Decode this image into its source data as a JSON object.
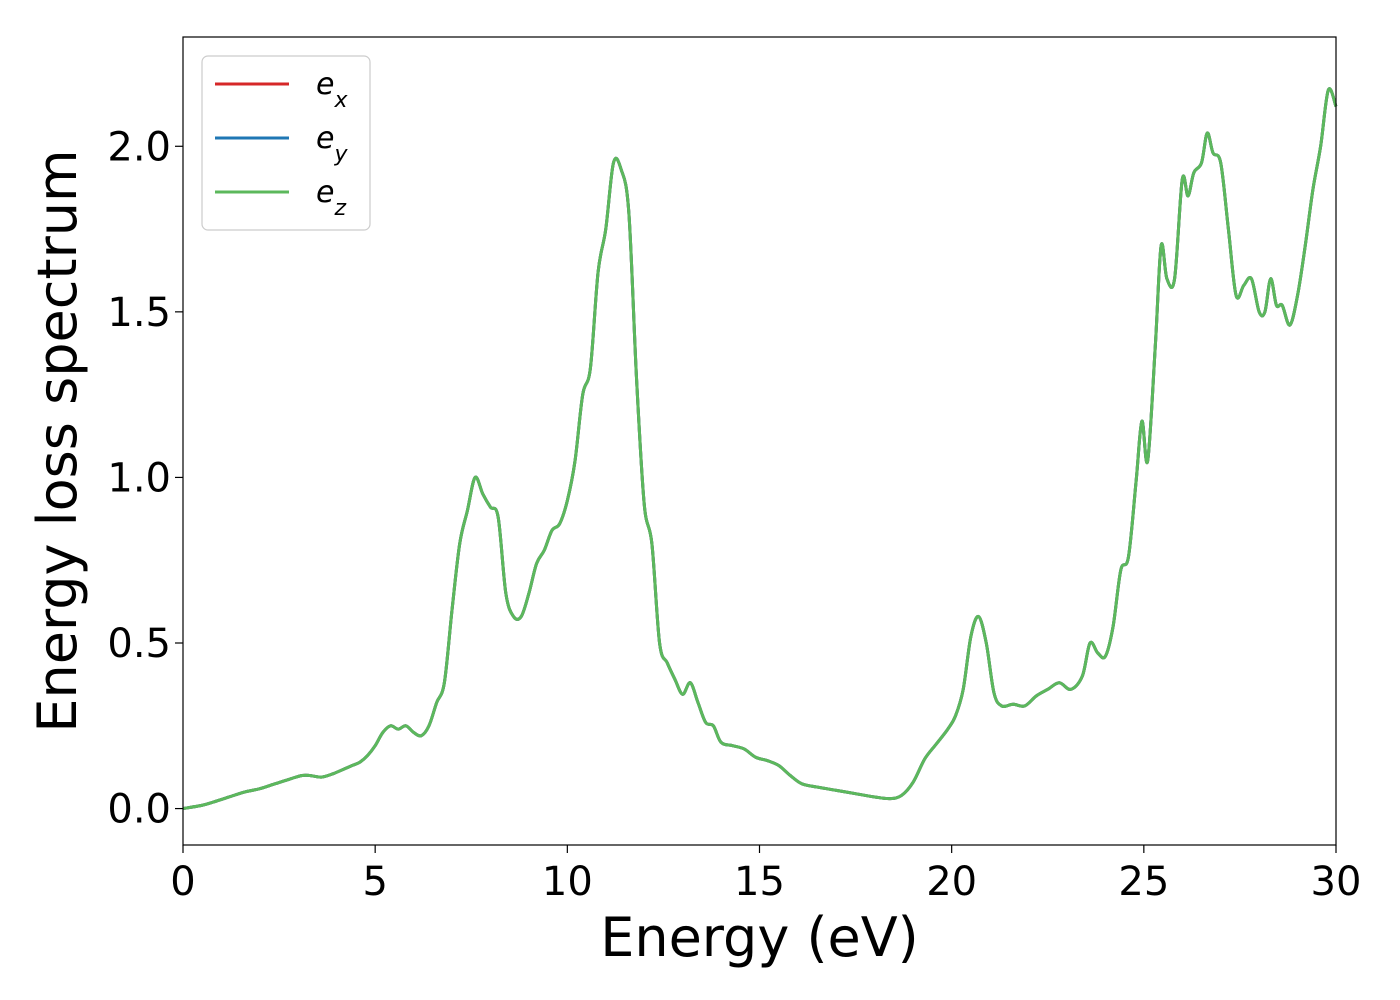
{
  "chart_data": {
    "type": "line",
    "xlabel": "Energy (eV)",
    "ylabel": "Energy loss spectrum",
    "xlim": [
      0,
      30
    ],
    "ylim": [
      -0.11,
      2.33
    ],
    "xticks": [
      0,
      5,
      10,
      15,
      20,
      25,
      30
    ],
    "yticks": [
      0.0,
      0.5,
      1.0,
      1.5,
      2.0
    ],
    "xtick_labels": [
      "0",
      "5",
      "10",
      "15",
      "20",
      "25",
      "30"
    ],
    "ytick_labels": [
      "0.0",
      "0.5",
      "1.0",
      "1.5",
      "2.0"
    ],
    "grid": false,
    "legend_position": "top-left",
    "series": [
      {
        "name": "e_x",
        "label_base": "e",
        "label_sub": "x",
        "color": "#d62728",
        "x": [
          0,
          0.5,
          0.8,
          1.2,
          1.6,
          2.0,
          2.4,
          2.8,
          3.1,
          3.3,
          3.6,
          3.9,
          4.2,
          4.4,
          4.6,
          4.8,
          5.0,
          5.2,
          5.4,
          5.6,
          5.8,
          6.0,
          6.2,
          6.4,
          6.6,
          6.8,
          7.0,
          7.2,
          7.4,
          7.6,
          7.8,
          8.0,
          8.2,
          8.4,
          8.6,
          8.8,
          9.0,
          9.2,
          9.4,
          9.6,
          9.8,
          10.0,
          10.2,
          10.4,
          10.6,
          10.8,
          11.0,
          11.2,
          11.4,
          11.6,
          11.8,
          12.0,
          12.2,
          12.4,
          12.6,
          12.8,
          13.0,
          13.2,
          13.4,
          13.6,
          13.8,
          14.0,
          14.3,
          14.6,
          14.9,
          15.2,
          15.5,
          15.8,
          16.1,
          16.5,
          17.0,
          17.5,
          18.0,
          18.4,
          18.7,
          19.0,
          19.3,
          19.6,
          19.9,
          20.1,
          20.3,
          20.5,
          20.7,
          20.9,
          21.1,
          21.3,
          21.6,
          21.9,
          22.2,
          22.5,
          22.8,
          23.1,
          23.4,
          23.6,
          23.8,
          24.0,
          24.2,
          24.4,
          24.6,
          24.8,
          24.95,
          25.1,
          25.3,
          25.45,
          25.6,
          25.8,
          26.0,
          26.15,
          26.3,
          26.5,
          26.65,
          26.8,
          27.0,
          27.2,
          27.4,
          27.6,
          27.8,
          28.0,
          28.15,
          28.3,
          28.45,
          28.6,
          28.8,
          29.0,
          29.2,
          29.4,
          29.6,
          29.8,
          30.0
        ],
        "y": [
          0.0,
          0.01,
          0.02,
          0.035,
          0.05,
          0.06,
          0.075,
          0.09,
          0.1,
          0.1,
          0.095,
          0.105,
          0.12,
          0.13,
          0.14,
          0.16,
          0.19,
          0.23,
          0.25,
          0.24,
          0.25,
          0.23,
          0.22,
          0.25,
          0.32,
          0.38,
          0.6,
          0.8,
          0.9,
          1.0,
          0.95,
          0.91,
          0.88,
          0.65,
          0.58,
          0.58,
          0.65,
          0.74,
          0.78,
          0.84,
          0.86,
          0.93,
          1.05,
          1.25,
          1.33,
          1.62,
          1.75,
          1.95,
          1.93,
          1.8,
          1.3,
          0.92,
          0.8,
          0.5,
          0.44,
          0.39,
          0.345,
          0.38,
          0.32,
          0.26,
          0.25,
          0.2,
          0.19,
          0.18,
          0.155,
          0.145,
          0.13,
          0.1,
          0.075,
          0.065,
          0.055,
          0.045,
          0.035,
          0.03,
          0.04,
          0.08,
          0.15,
          0.195,
          0.24,
          0.28,
          0.36,
          0.52,
          0.58,
          0.5,
          0.35,
          0.31,
          0.315,
          0.31,
          0.34,
          0.36,
          0.38,
          0.36,
          0.4,
          0.5,
          0.47,
          0.46,
          0.55,
          0.72,
          0.76,
          0.99,
          1.17,
          1.05,
          1.4,
          1.7,
          1.6,
          1.6,
          1.9,
          1.85,
          1.92,
          1.95,
          2.04,
          1.98,
          1.95,
          1.75,
          1.55,
          1.58,
          1.6,
          1.5,
          1.5,
          1.6,
          1.52,
          1.52,
          1.46,
          1.55,
          1.7,
          1.87,
          2.0,
          2.17,
          2.12
        ]
      },
      {
        "name": "e_y",
        "label_base": "e",
        "label_sub": "y",
        "color": "#1f77b4",
        "same_as": "e_x"
      },
      {
        "name": "e_z",
        "label_base": "e",
        "label_sub": "z",
        "color": "#5cb85c",
        "same_as": "e_x"
      }
    ]
  }
}
